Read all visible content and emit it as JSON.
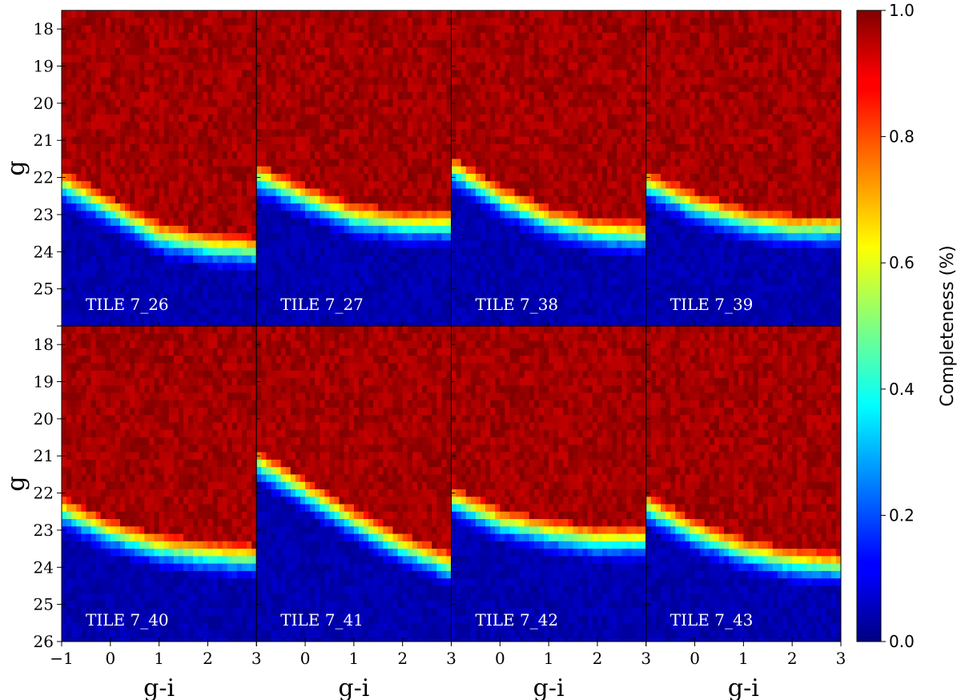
{
  "chart_data": {
    "type": "heatmap",
    "description_note": "",
    "grid_rows": 2,
    "grid_cols": 4,
    "xlabel": "g-i",
    "ylabel": "g",
    "xlim": [
      -1,
      3
    ],
    "ylim": [
      26,
      17.5
    ],
    "xticks": [
      -1,
      0,
      1,
      2,
      3
    ],
    "xtick_labels": [
      "−1",
      "0",
      "1",
      "2",
      "3"
    ],
    "yticks": [
      18,
      19,
      20,
      21,
      22,
      23,
      24,
      25,
      26
    ],
    "cell_size_gi": 0.1,
    "cell_size_g": 0.2,
    "colorbar": {
      "label": "Completeness (%)",
      "min": 0.0,
      "max": 1.0,
      "ticks": [
        0.0,
        0.2,
        0.4,
        0.6,
        0.8,
        1.0
      ],
      "tick_labels": [
        "0.0",
        "0.2",
        "0.4",
        "0.6",
        "0.8",
        "1.0"
      ],
      "colormap": "jet"
    },
    "panels": [
      {
        "title": "TILE 7_26",
        "g50_at_gi": [
          [
            -1,
            22.2
          ],
          [
            0,
            22.9
          ],
          [
            1,
            23.6
          ],
          [
            2,
            23.9
          ],
          [
            3,
            24.0
          ]
        ]
      },
      {
        "title": "TILE 7_27",
        "g50_at_gi": [
          [
            -1,
            22.0
          ],
          [
            0,
            22.6
          ],
          [
            1,
            23.1
          ],
          [
            2,
            23.3
          ],
          [
            3,
            23.3
          ]
        ]
      },
      {
        "title": "TILE 7_38",
        "g50_at_gi": [
          [
            -1,
            21.8
          ],
          [
            0,
            22.6
          ],
          [
            1,
            23.2
          ],
          [
            2,
            23.5
          ],
          [
            3,
            23.6
          ]
        ]
      },
      {
        "title": "TILE 7_39",
        "g50_at_gi": [
          [
            -1,
            22.2
          ],
          [
            0,
            22.8
          ],
          [
            1,
            23.2
          ],
          [
            2,
            23.4
          ],
          [
            3,
            23.4
          ]
        ]
      },
      {
        "title": "TILE 7_40",
        "g50_at_gi": [
          [
            -1,
            22.5
          ],
          [
            0,
            23.1
          ],
          [
            1,
            23.5
          ],
          [
            2,
            23.7
          ],
          [
            3,
            23.8
          ]
        ]
      },
      {
        "title": "TILE 7_41",
        "g50_at_gi": [
          [
            -1,
            21.2
          ],
          [
            0,
            22.0
          ],
          [
            1,
            22.8
          ],
          [
            2,
            23.5
          ],
          [
            3,
            24.0
          ]
        ]
      },
      {
        "title": "TILE 7_42",
        "g50_at_gi": [
          [
            -1,
            22.2
          ],
          [
            0,
            22.8
          ],
          [
            1,
            23.1
          ],
          [
            2,
            23.3
          ],
          [
            3,
            23.3
          ]
        ]
      },
      {
        "title": "TILE 7_43",
        "g50_at_gi": [
          [
            -1,
            22.4
          ],
          [
            0,
            23.1
          ],
          [
            1,
            23.6
          ],
          [
            2,
            23.9
          ],
          [
            3,
            24.0
          ]
        ]
      }
    ]
  }
}
